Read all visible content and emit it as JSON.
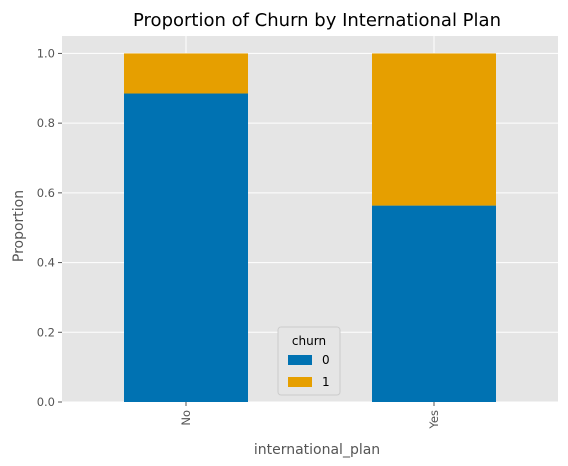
{
  "chart_data": {
    "type": "bar",
    "stacked": true,
    "title": "Proportion of Churn by International Plan",
    "xlabel": "international_plan",
    "ylabel": "Proportion",
    "categories": [
      "No",
      "Yes"
    ],
    "ylim": [
      0,
      1.05
    ],
    "yticks": [
      "0.0",
      "0.2",
      "0.4",
      "0.6",
      "0.8",
      "1.0"
    ],
    "grid": true,
    "legend": {
      "title": "churn",
      "placement": "lower-center"
    },
    "series": [
      {
        "name": "0",
        "values": [
          0.885,
          0.5635
        ],
        "color": "#0072B2"
      },
      {
        "name": "1",
        "values": [
          0.115,
          0.4365
        ],
        "color": "#E69F00"
      }
    ],
    "background": "#E5E5E5"
  }
}
